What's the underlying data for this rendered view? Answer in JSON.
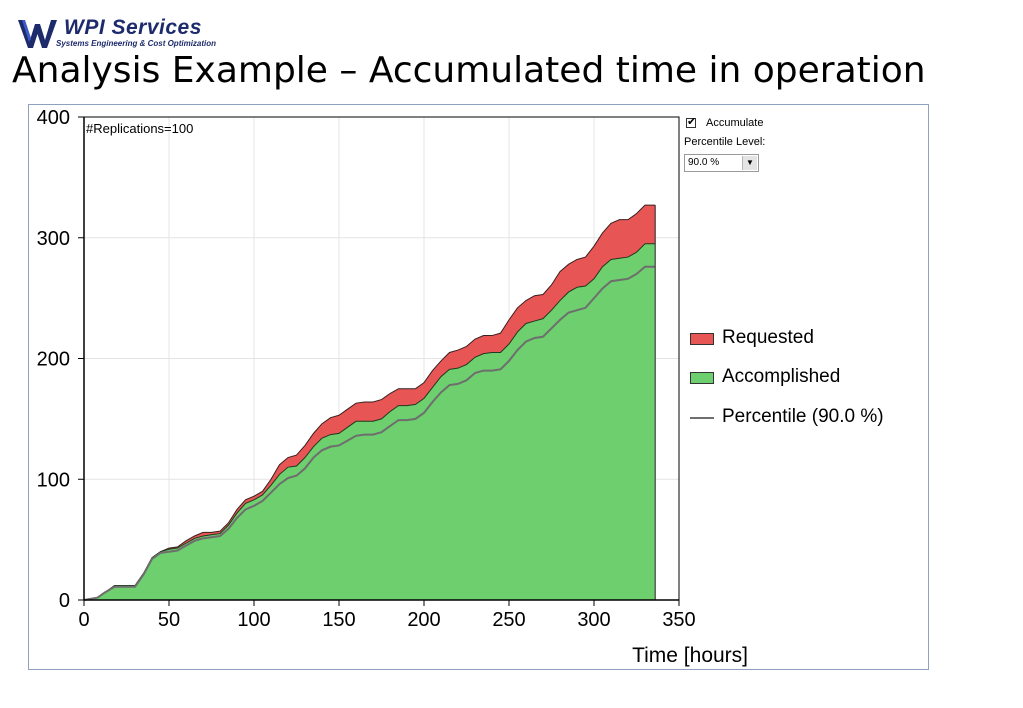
{
  "header": {
    "logo_name": "WPI Services",
    "logo_tagline": "Systems Engineering & Cost Optimization",
    "title": "Analysis Example – Accumulated time in operation"
  },
  "controls": {
    "accumulate_label": "Accumulate",
    "accumulate_checked": true,
    "percentile_label": "Percentile Level:",
    "percentile_value": "90.0 %"
  },
  "chart_data": {
    "type": "area",
    "annotation": "#Replications=100",
    "xlabel": "Time [hours]",
    "ylabel": "",
    "xlim": [
      0,
      350
    ],
    "ylim": [
      0,
      400
    ],
    "xticks": [
      0,
      50,
      100,
      150,
      200,
      250,
      300,
      350
    ],
    "yticks": [
      0,
      100,
      200,
      300,
      400
    ],
    "grid": true,
    "legend_position": "right",
    "colors": {
      "requested": "#e85555",
      "accomplished": "#6dcf6d",
      "percentile": "#6e6e6e"
    },
    "x": [
      0,
      8,
      12,
      18,
      25,
      30,
      35,
      40,
      45,
      50,
      55,
      60,
      65,
      70,
      75,
      80,
      85,
      90,
      95,
      100,
      105,
      110,
      115,
      120,
      125,
      130,
      135,
      140,
      145,
      150,
      155,
      160,
      165,
      170,
      175,
      180,
      185,
      190,
      195,
      200,
      205,
      210,
      215,
      220,
      225,
      230,
      235,
      240,
      245,
      250,
      255,
      260,
      265,
      270,
      275,
      280,
      285,
      290,
      295,
      300,
      305,
      310,
      315,
      320,
      325,
      330,
      336
    ],
    "series": [
      {
        "name": "Requested",
        "values": [
          0,
          2,
          6,
          12,
          12,
          12,
          22,
          35,
          40,
          43,
          44,
          49,
          53,
          56,
          56,
          57,
          64,
          75,
          83,
          86,
          90,
          100,
          112,
          118,
          120,
          128,
          138,
          146,
          151,
          153,
          158,
          163,
          164,
          164,
          166,
          171,
          175,
          175,
          175,
          180,
          190,
          198,
          205,
          207,
          210,
          216,
          219,
          219,
          221,
          232,
          242,
          248,
          252,
          253,
          261,
          272,
          278,
          282,
          284,
          293,
          304,
          312,
          315,
          315,
          320,
          327,
          327
        ]
      },
      {
        "name": "Accomplished",
        "values": [
          0,
          2,
          6,
          12,
          12,
          12,
          22,
          35,
          40,
          42,
          43,
          47,
          51,
          53,
          54,
          55,
          62,
          72,
          80,
          83,
          87,
          95,
          104,
          110,
          111,
          118,
          127,
          134,
          137,
          138,
          143,
          148,
          148,
          148,
          150,
          156,
          161,
          161,
          162,
          167,
          176,
          185,
          191,
          192,
          195,
          201,
          204,
          205,
          205,
          212,
          222,
          229,
          231,
          233,
          240,
          248,
          255,
          259,
          260,
          266,
          276,
          282,
          283,
          284,
          288,
          295,
          295
        ]
      },
      {
        "name": "Percentile (90.0 %)",
        "values": [
          0,
          2,
          6,
          11,
          11,
          11,
          21,
          34,
          39,
          40,
          41,
          45,
          49,
          51,
          52,
          53,
          59,
          68,
          75,
          78,
          82,
          89,
          96,
          101,
          103,
          109,
          118,
          124,
          127,
          128,
          132,
          136,
          137,
          137,
          139,
          144,
          149,
          149,
          150,
          155,
          164,
          172,
          178,
          179,
          182,
          188,
          190,
          190,
          191,
          198,
          207,
          214,
          217,
          218,
          225,
          232,
          238,
          240,
          242,
          250,
          258,
          264,
          265,
          266,
          270,
          276,
          276
        ]
      }
    ]
  }
}
